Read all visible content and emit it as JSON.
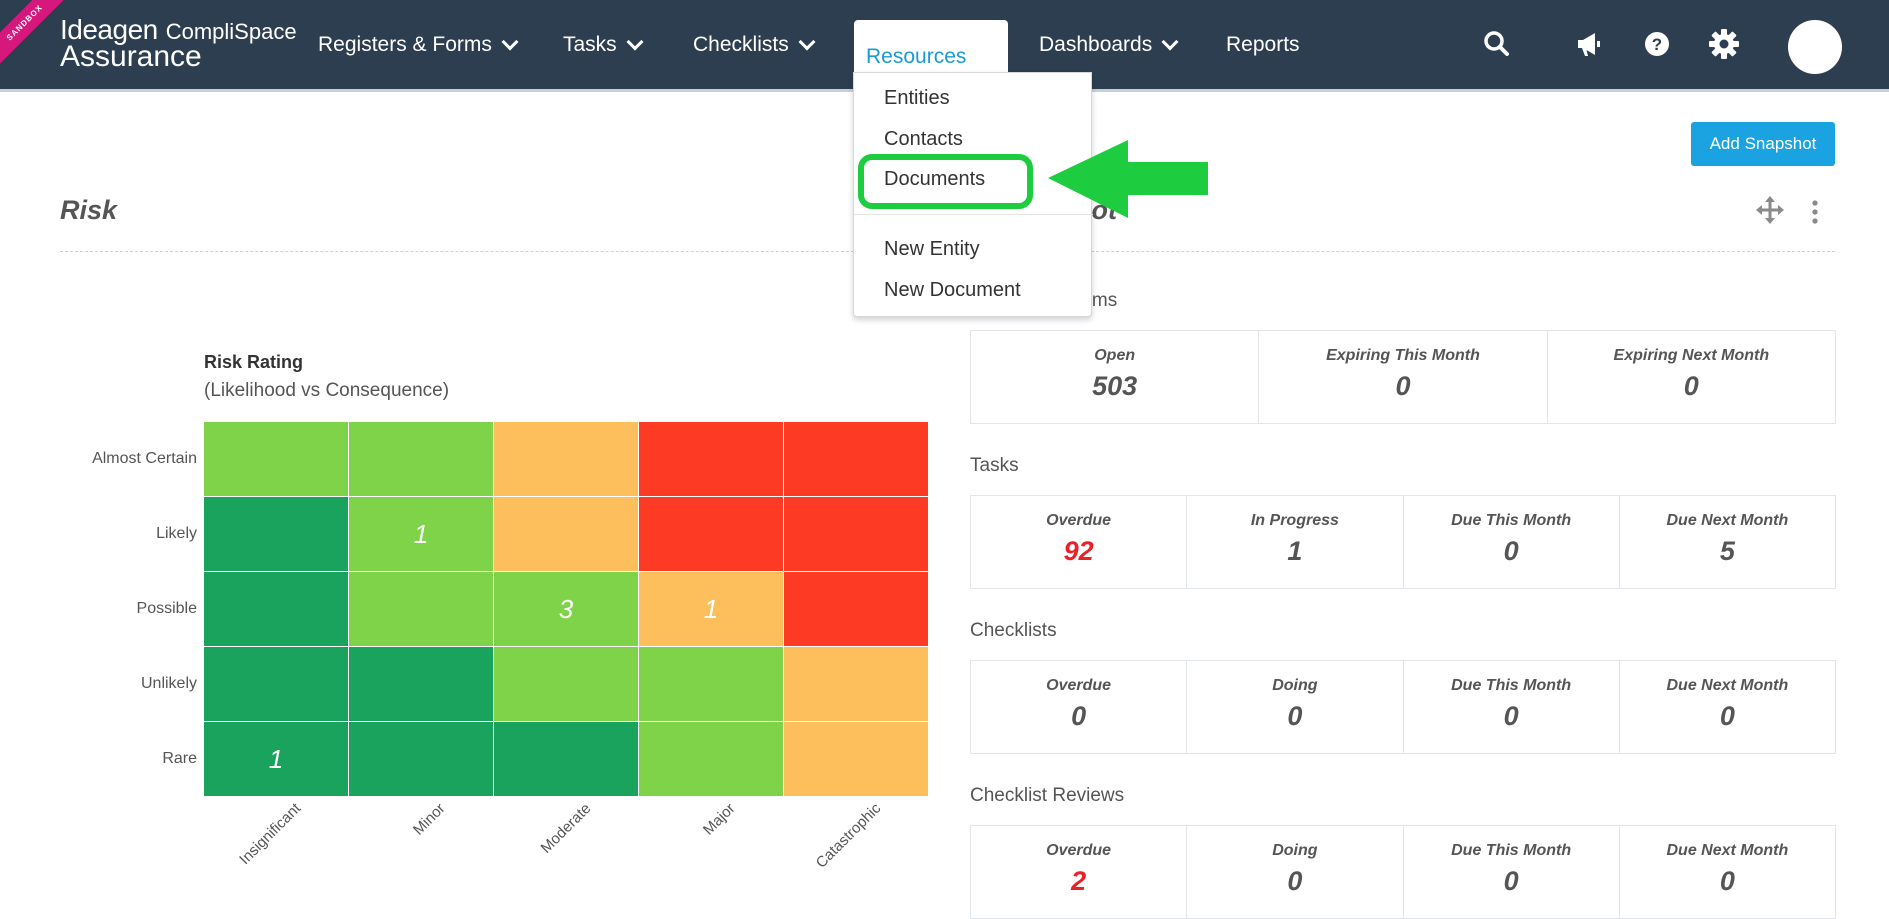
{
  "header": {
    "sandbox_label": "SANDBOX",
    "logo_line1": "Ideagen",
    "logo_line1b": "CompliSpace",
    "logo_line2": "Assurance",
    "nav": [
      {
        "label": "Registers & Forms",
        "has_dropdown": true
      },
      {
        "label": "Tasks",
        "has_dropdown": true
      },
      {
        "label": "Checklists",
        "has_dropdown": true
      },
      {
        "label": "Resources",
        "has_dropdown": false,
        "active": true
      },
      {
        "label": "Dashboards",
        "has_dropdown": true
      },
      {
        "label": "Reports",
        "has_dropdown": false
      }
    ],
    "icons": [
      "search-icon",
      "megaphone-icon",
      "help-icon",
      "gear-icon",
      "avatar"
    ]
  },
  "resources_menu": {
    "items": [
      "Entities",
      "Contacts",
      "Documents"
    ],
    "items_after_divider": [
      "New Entity",
      "New Document"
    ],
    "highlighted": "Documents"
  },
  "toolbar": {
    "add_snapshot_label": "Add Snapshot"
  },
  "risk_panel": {
    "title": "Risk",
    "chart_data": {
      "type": "heatmap",
      "title": "Risk Rating",
      "subtitle": "(Likelihood vs Consequence)",
      "y_categories": [
        "Almost Certain",
        "Likely",
        "Possible",
        "Unlikely",
        "Rare"
      ],
      "x_categories": [
        "Insignificant",
        "Minor",
        "Moderate",
        "Major",
        "Catastrophic"
      ],
      "colors": {
        "low": "#1aa35c",
        "medium": "#7ed348",
        "high": "#fdbf5c",
        "extreme": "#fd3a23"
      },
      "ratings": [
        [
          "medium",
          "medium",
          "high",
          "extreme",
          "extreme"
        ],
        [
          "low",
          "medium",
          "high",
          "extreme",
          "extreme"
        ],
        [
          "low",
          "medium",
          "medium",
          "high",
          "extreme"
        ],
        [
          "low",
          "low",
          "medium",
          "medium",
          "high"
        ],
        [
          "low",
          "low",
          "low",
          "medium",
          "high"
        ]
      ],
      "counts": [
        [
          "",
          "",
          "",
          "",
          ""
        ],
        [
          "",
          "1",
          "",
          "",
          ""
        ],
        [
          "",
          "",
          "3",
          "1",
          ""
        ],
        [
          "",
          "",
          "",
          "",
          ""
        ],
        [
          "1",
          "",
          "",
          "",
          ""
        ]
      ]
    }
  },
  "snapshot_panel": {
    "title_fragment": "hot",
    "sections": [
      {
        "title": "orms",
        "stats": [
          {
            "label": "Open",
            "value": "503",
            "red": false
          },
          {
            "label": "Expiring This Month",
            "value": "0",
            "red": false
          },
          {
            "label": "Expiring Next Month",
            "value": "0",
            "red": false
          }
        ]
      },
      {
        "title": "Tasks",
        "stats": [
          {
            "label": "Overdue",
            "value": "92",
            "red": true
          },
          {
            "label": "In Progress",
            "value": "1",
            "red": false
          },
          {
            "label": "Due This Month",
            "value": "0",
            "red": false
          },
          {
            "label": "Due Next Month",
            "value": "5",
            "red": false
          }
        ]
      },
      {
        "title": "Checklists",
        "stats": [
          {
            "label": "Overdue",
            "value": "0",
            "red": false
          },
          {
            "label": "Doing",
            "value": "0",
            "red": false
          },
          {
            "label": "Due This Month",
            "value": "0",
            "red": false
          },
          {
            "label": "Due Next Month",
            "value": "0",
            "red": false
          }
        ]
      },
      {
        "title": "Checklist Reviews",
        "stats": [
          {
            "label": "Overdue",
            "value": "2",
            "red": true
          },
          {
            "label": "Doing",
            "value": "0",
            "red": false
          },
          {
            "label": "Due This Month",
            "value": "0",
            "red": false
          },
          {
            "label": "Due Next Month",
            "value": "0",
            "red": false
          }
        ]
      }
    ]
  }
}
